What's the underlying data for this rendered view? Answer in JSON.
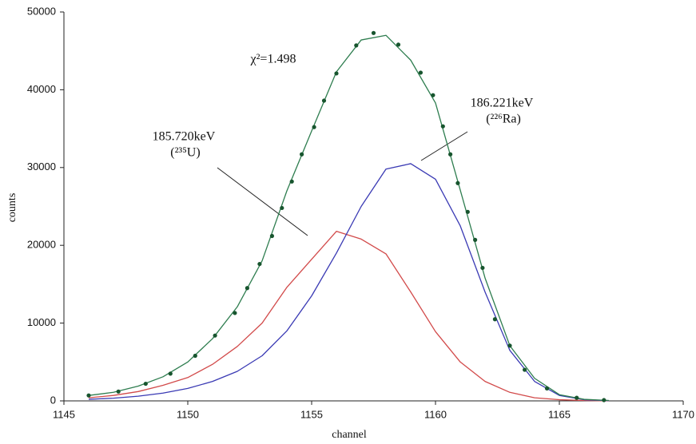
{
  "chart_data": {
    "type": "line",
    "xlabel": "channel",
    "ylabel": "counts",
    "xlim": [
      1145,
      1170
    ],
    "ylim": [
      0,
      50000
    ],
    "xticks": [
      1145,
      1150,
      1155,
      1160,
      1165,
      1170
    ],
    "yticks": [
      0,
      10000,
      20000,
      30000,
      40000,
      50000
    ],
    "x": [
      1146,
      1147,
      1148,
      1149,
      1150,
      1151,
      1152,
      1153,
      1154,
      1155,
      1156,
      1157,
      1158,
      1159,
      1160,
      1161,
      1162,
      1163,
      1164,
      1165,
      1166,
      1167
    ],
    "series": [
      {
        "color": "#d24a4a",
        "values": [
          400,
          700,
          1200,
          2000,
          3000,
          4700,
          7000,
          10000,
          14600,
          18200,
          21800,
          20800,
          18900,
          14000,
          8900,
          5000,
          2500,
          1100,
          400,
          150,
          50,
          0
        ]
      },
      {
        "color": "#3a3ab4",
        "values": [
          200,
          350,
          600,
          1000,
          1600,
          2500,
          3800,
          5800,
          9000,
          13500,
          19000,
          25000,
          29800,
          30500,
          28500,
          22500,
          14000,
          6500,
          2500,
          700,
          150,
          30
        ]
      },
      {
        "color": "#2e7d4f",
        "values": [
          700,
          1100,
          1900,
          3100,
          5000,
          8000,
          12100,
          18000,
          27000,
          34700,
          42300,
          46400,
          47000,
          43800,
          38300,
          27100,
          15800,
          7100,
          2900,
          800,
          200,
          50
        ]
      }
    ],
    "points": {
      "color": "#17552e",
      "x": [
        1146.0,
        1147.2,
        1148.3,
        1149.3,
        1150.3,
        1151.1,
        1151.9,
        1152.4,
        1152.9,
        1153.4,
        1153.8,
        1154.2,
        1154.6,
        1155.1,
        1155.5,
        1156.0,
        1156.8,
        1157.5,
        1158.5,
        1159.4,
        1159.9,
        1160.3,
        1160.6,
        1160.9,
        1161.3,
        1161.6,
        1161.9,
        1162.4,
        1163.0,
        1163.6,
        1164.5,
        1165.7,
        1166.8
      ],
      "values": [
        700,
        1200,
        2200,
        3500,
        5800,
        8400,
        11300,
        14500,
        17600,
        21200,
        24800,
        28200,
        31700,
        35200,
        38600,
        42100,
        45700,
        47300,
        45800,
        42200,
        39300,
        35300,
        31700,
        28000,
        24300,
        20700,
        17100,
        10500,
        7100,
        4000,
        1600,
        400,
        100
      ]
    },
    "annotations": [
      "χ²=1.498",
      "185.720keV",
      "(²³⁵U)",
      "186.221keV",
      "(²²⁶Ra)"
    ]
  }
}
